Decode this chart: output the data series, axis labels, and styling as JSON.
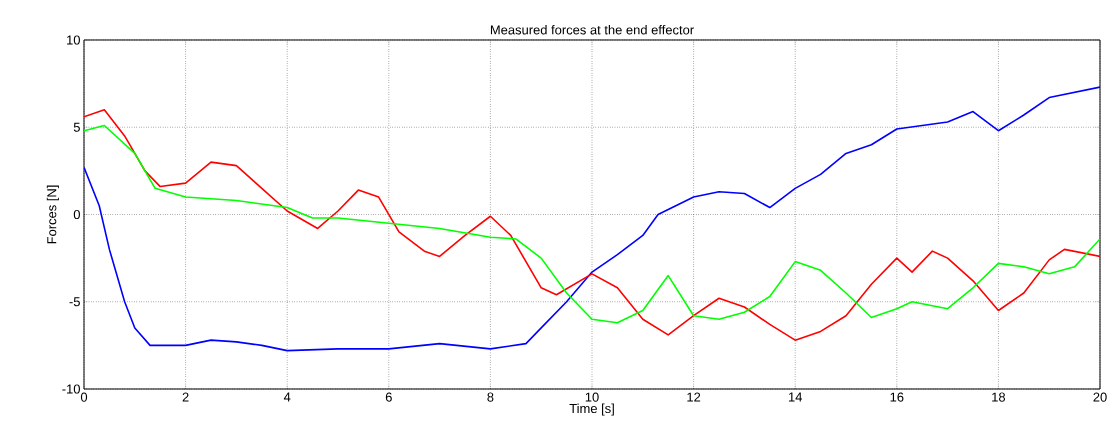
{
  "chart_data": {
    "type": "line",
    "title": "Measured forces at the end effector",
    "xlabel": "Time [s]",
    "ylabel": "Forces [N]",
    "xlim": [
      0,
      20
    ],
    "ylim": [
      -10,
      10
    ],
    "xticks": [
      0,
      2,
      4,
      6,
      8,
      10,
      12,
      14,
      16,
      18,
      20
    ],
    "yticks": [
      -10,
      -5,
      0,
      5,
      10
    ],
    "grid": true,
    "marker": "none",
    "line_style": "solid",
    "series": [
      {
        "color": "#0000ff",
        "x": [
          0,
          0.3,
          0.5,
          0.8,
          1.0,
          1.3,
          2,
          2.5,
          3,
          3.5,
          4,
          5,
          6,
          7,
          8,
          8.7,
          9,
          9.5,
          10,
          10.5,
          11,
          11.3,
          12,
          12.5,
          13,
          13.5,
          14,
          14.5,
          15,
          15.5,
          16,
          17,
          17.5,
          18,
          18.5,
          19,
          20
        ],
        "values": [
          2.7,
          0.5,
          -2,
          -5,
          -6.5,
          -7.5,
          -7.5,
          -7.2,
          -7.3,
          -7.5,
          -7.8,
          -7.7,
          -7.7,
          -7.4,
          -7.7,
          -7.4,
          -6.5,
          -5,
          -3.3,
          -2.3,
          -1.2,
          0,
          1,
          1.3,
          1.2,
          0.4,
          1.5,
          2.3,
          3.5,
          4,
          4.9,
          5.3,
          5.9,
          4.8,
          5.7,
          6.7,
          7.3
        ]
      },
      {
        "color": "#ff0000",
        "x": [
          0,
          0.4,
          0.8,
          1.2,
          1.5,
          2,
          2.5,
          3,
          3.5,
          4,
          4.6,
          5,
          5.4,
          5.8,
          6.2,
          6.7,
          7,
          7.5,
          8,
          8.4,
          9,
          9.3,
          10,
          10.5,
          11,
          11.5,
          12,
          12.5,
          13,
          13.5,
          14,
          14.5,
          15,
          15.5,
          16,
          16.3,
          16.7,
          17,
          17.5,
          18,
          18.5,
          19,
          19.3,
          20
        ],
        "values": [
          5.6,
          6.0,
          4.5,
          2.5,
          1.6,
          1.8,
          3.0,
          2.8,
          1.5,
          0.2,
          -0.8,
          0.2,
          1.4,
          1.0,
          -1.0,
          -2.1,
          -2.4,
          -1.2,
          -0.1,
          -1.2,
          -4.2,
          -4.6,
          -3.4,
          -4.2,
          -6.0,
          -6.9,
          -5.8,
          -4.8,
          -5.3,
          -6.3,
          -7.2,
          -6.7,
          -5.8,
          -4.0,
          -2.5,
          -3.3,
          -2.1,
          -2.5,
          -3.8,
          -5.5,
          -4.5,
          -2.6,
          -2.0,
          -2.4
        ]
      },
      {
        "color": "#00ff00",
        "x": [
          0,
          0.4,
          1,
          1.4,
          2,
          3,
          4,
          4.5,
          5,
          6,
          7,
          8,
          8.5,
          9,
          9.5,
          10,
          10.5,
          11,
          11.5,
          12,
          12.5,
          13,
          13.5,
          14,
          14.5,
          15,
          15.5,
          16,
          16.3,
          17,
          17.5,
          18,
          18.5,
          19,
          19.5,
          20
        ],
        "values": [
          4.8,
          5.1,
          3.5,
          1.5,
          1.0,
          0.8,
          0.4,
          -0.2,
          -0.2,
          -0.5,
          -0.8,
          -1.3,
          -1.4,
          -2.5,
          -4.5,
          -6.0,
          -6.2,
          -5.5,
          -3.5,
          -5.8,
          -6.0,
          -5.6,
          -4.7,
          -2.7,
          -3.2,
          -4.5,
          -5.9,
          -5.4,
          -5.0,
          -5.4,
          -4.2,
          -2.8,
          -3.0,
          -3.4,
          -3.0,
          -1.4
        ]
      }
    ]
  }
}
